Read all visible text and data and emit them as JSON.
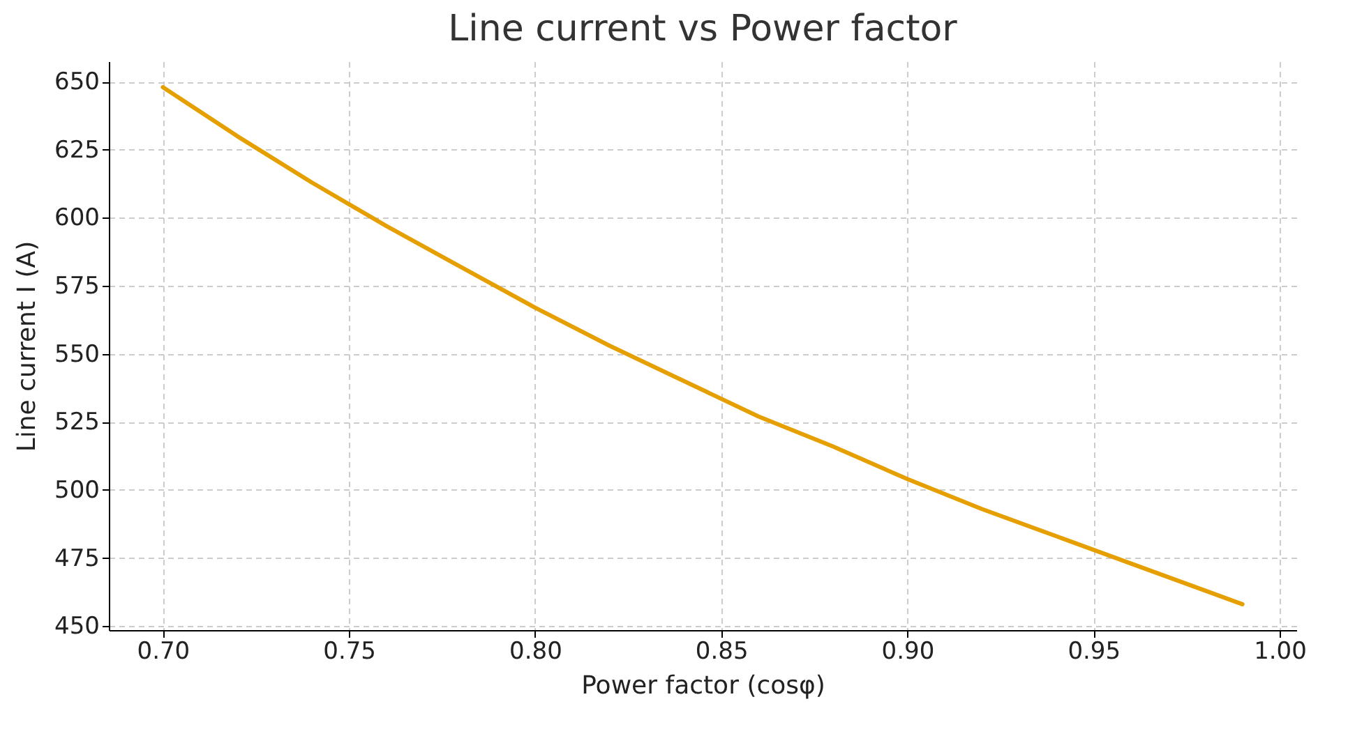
{
  "chart_data": {
    "type": "line",
    "title": "Line current vs Power factor",
    "xlabel": "Power factor (cosφ)",
    "ylabel": "Line current I (A)",
    "x": [
      0.7,
      0.72,
      0.74,
      0.76,
      0.78,
      0.8,
      0.82,
      0.84,
      0.86,
      0.88,
      0.9,
      0.92,
      0.94,
      0.96,
      0.98,
      0.99
    ],
    "series": [
      {
        "color": "#e69f00",
        "values": [
          648,
          630,
          613,
          597,
          582,
          567,
          553,
          540,
          527,
          516,
          504,
          493,
          483,
          473,
          463,
          458
        ]
      }
    ],
    "xlim": [
      0.6855,
      1.0045
    ],
    "xticks": [
      {
        "value": 0.7,
        "label": "0.70"
      },
      {
        "value": 0.75,
        "label": "0.75"
      },
      {
        "value": 0.8,
        "label": "0.80"
      },
      {
        "value": 0.85,
        "label": "0.85"
      },
      {
        "value": 0.9,
        "label": "0.90"
      },
      {
        "value": 0.95,
        "label": "0.95"
      },
      {
        "value": 1.0,
        "label": "1.00"
      }
    ],
    "ylim": [
      448.5,
      657.5
    ],
    "yticks": [
      450,
      475,
      500,
      525,
      550,
      575,
      600,
      625,
      650
    ],
    "grid": true,
    "marker": "none",
    "line_style": "solid"
  }
}
